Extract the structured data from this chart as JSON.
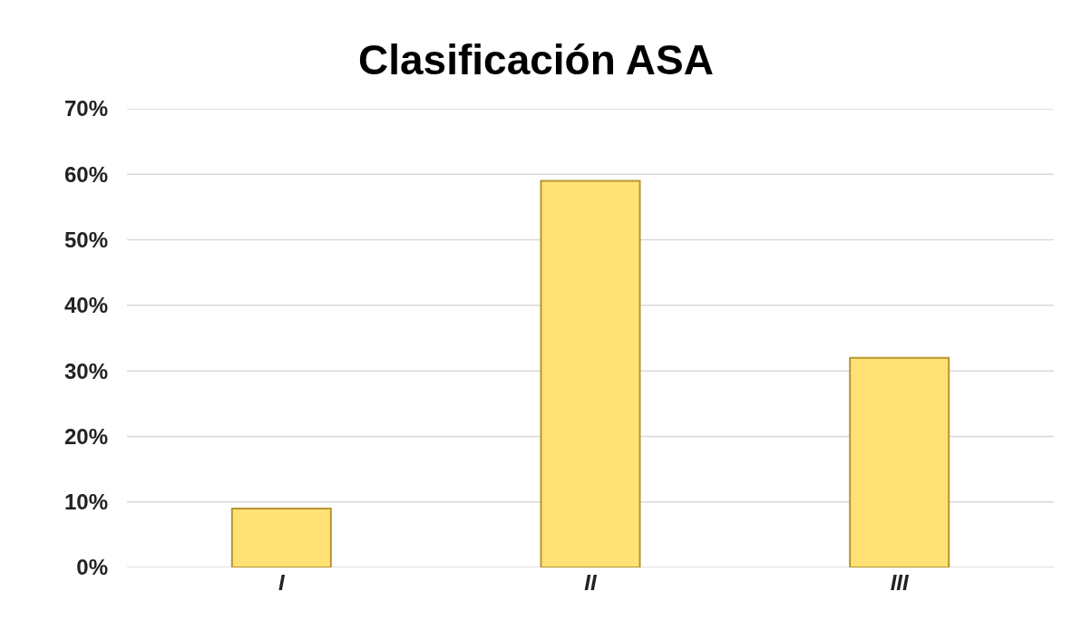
{
  "chart_data": {
    "type": "bar",
    "title": "Clasificación ASA",
    "categories": [
      "I",
      "II",
      "III"
    ],
    "values": [
      9,
      59,
      32
    ],
    "color": "#ffe273",
    "ylim": [
      0,
      70
    ],
    "yticks": [
      {
        "value": 0,
        "label": "0%"
      },
      {
        "value": 10,
        "label": "10%"
      },
      {
        "value": 20,
        "label": "20%"
      },
      {
        "value": 30,
        "label": "30%"
      },
      {
        "value": 40,
        "label": "40%"
      },
      {
        "value": 50,
        "label": "50%"
      },
      {
        "value": 60,
        "label": "60%"
      },
      {
        "value": 70,
        "label": "70%"
      }
    ],
    "grid": "y"
  }
}
